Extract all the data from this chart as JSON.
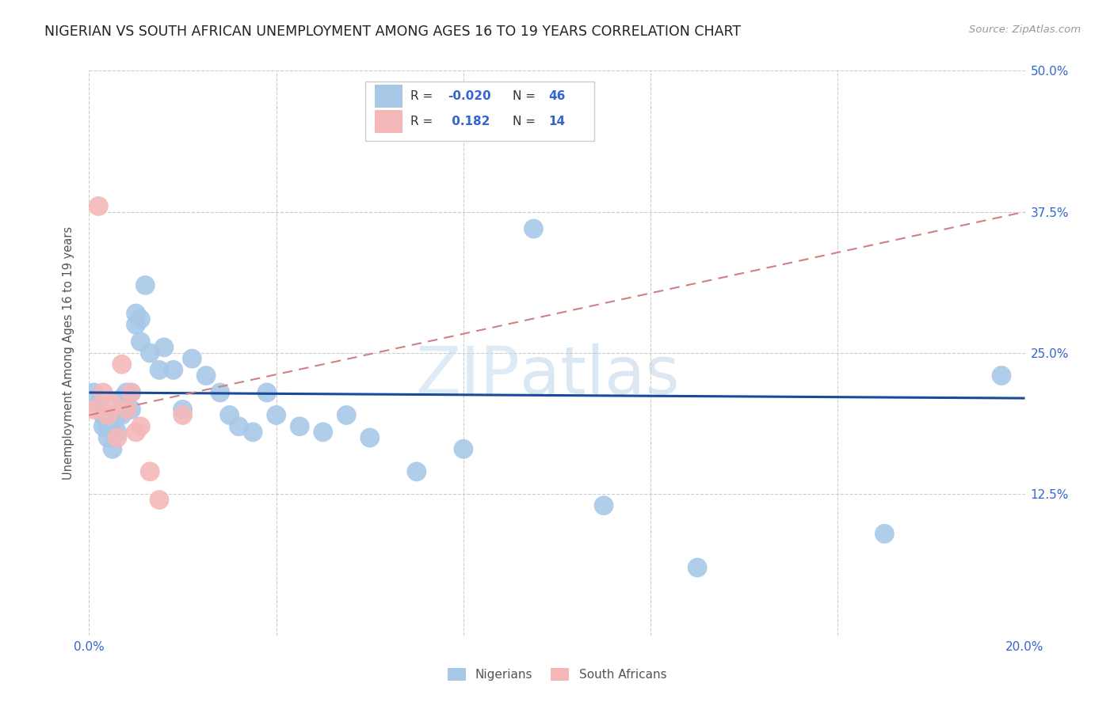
{
  "title": "NIGERIAN VS SOUTH AFRICAN UNEMPLOYMENT AMONG AGES 16 TO 19 YEARS CORRELATION CHART",
  "source": "Source: ZipAtlas.com",
  "ylabel": "Unemployment Among Ages 16 to 19 years",
  "xlim": [
    0.0,
    0.2
  ],
  "ylim": [
    0.0,
    0.5
  ],
  "xticks": [
    0.0,
    0.04,
    0.08,
    0.12,
    0.16,
    0.2
  ],
  "yticks": [
    0.0,
    0.125,
    0.25,
    0.375,
    0.5
  ],
  "xticklabels_show": [
    "0.0%",
    "20.0%"
  ],
  "yticklabels": [
    "",
    "12.5%",
    "25.0%",
    "37.5%",
    "50.0%"
  ],
  "nigerian_R": -0.02,
  "nigerian_N": 46,
  "southafrican_R": 0.182,
  "southafrican_N": 14,
  "nigerian_color": "#a8c8e8",
  "southafrican_color": "#f5b8b8",
  "nigerian_line_color": "#1a4a9a",
  "southafrican_line_color": "#d08080",
  "nigerian_x": [
    0.001,
    0.002,
    0.003,
    0.003,
    0.004,
    0.004,
    0.005,
    0.005,
    0.005,
    0.006,
    0.006,
    0.007,
    0.007,
    0.008,
    0.008,
    0.009,
    0.009,
    0.01,
    0.01,
    0.011,
    0.011,
    0.012,
    0.013,
    0.015,
    0.016,
    0.018,
    0.02,
    0.022,
    0.025,
    0.028,
    0.03,
    0.032,
    0.035,
    0.038,
    0.04,
    0.045,
    0.05,
    0.055,
    0.06,
    0.07,
    0.08,
    0.095,
    0.11,
    0.13,
    0.17,
    0.195
  ],
  "nigerian_y": [
    0.215,
    0.205,
    0.195,
    0.185,
    0.185,
    0.175,
    0.195,
    0.18,
    0.165,
    0.195,
    0.18,
    0.21,
    0.195,
    0.215,
    0.2,
    0.2,
    0.215,
    0.285,
    0.275,
    0.28,
    0.26,
    0.31,
    0.25,
    0.235,
    0.255,
    0.235,
    0.2,
    0.245,
    0.23,
    0.215,
    0.195,
    0.185,
    0.18,
    0.215,
    0.195,
    0.185,
    0.18,
    0.195,
    0.175,
    0.145,
    0.165,
    0.36,
    0.115,
    0.06,
    0.09,
    0.23
  ],
  "southafrican_x": [
    0.001,
    0.002,
    0.003,
    0.004,
    0.005,
    0.006,
    0.007,
    0.008,
    0.009,
    0.01,
    0.011,
    0.013,
    0.015,
    0.02
  ],
  "southafrican_y": [
    0.2,
    0.38,
    0.215,
    0.195,
    0.205,
    0.175,
    0.24,
    0.2,
    0.215,
    0.18,
    0.185,
    0.145,
    0.12,
    0.195
  ],
  "nig_line_x0": 0.0,
  "nig_line_y0": 0.215,
  "nig_line_x1": 0.2,
  "nig_line_y1": 0.21,
  "sa_line_x0": 0.0,
  "sa_line_y0": 0.195,
  "sa_line_x1": 0.2,
  "sa_line_y1": 0.375
}
